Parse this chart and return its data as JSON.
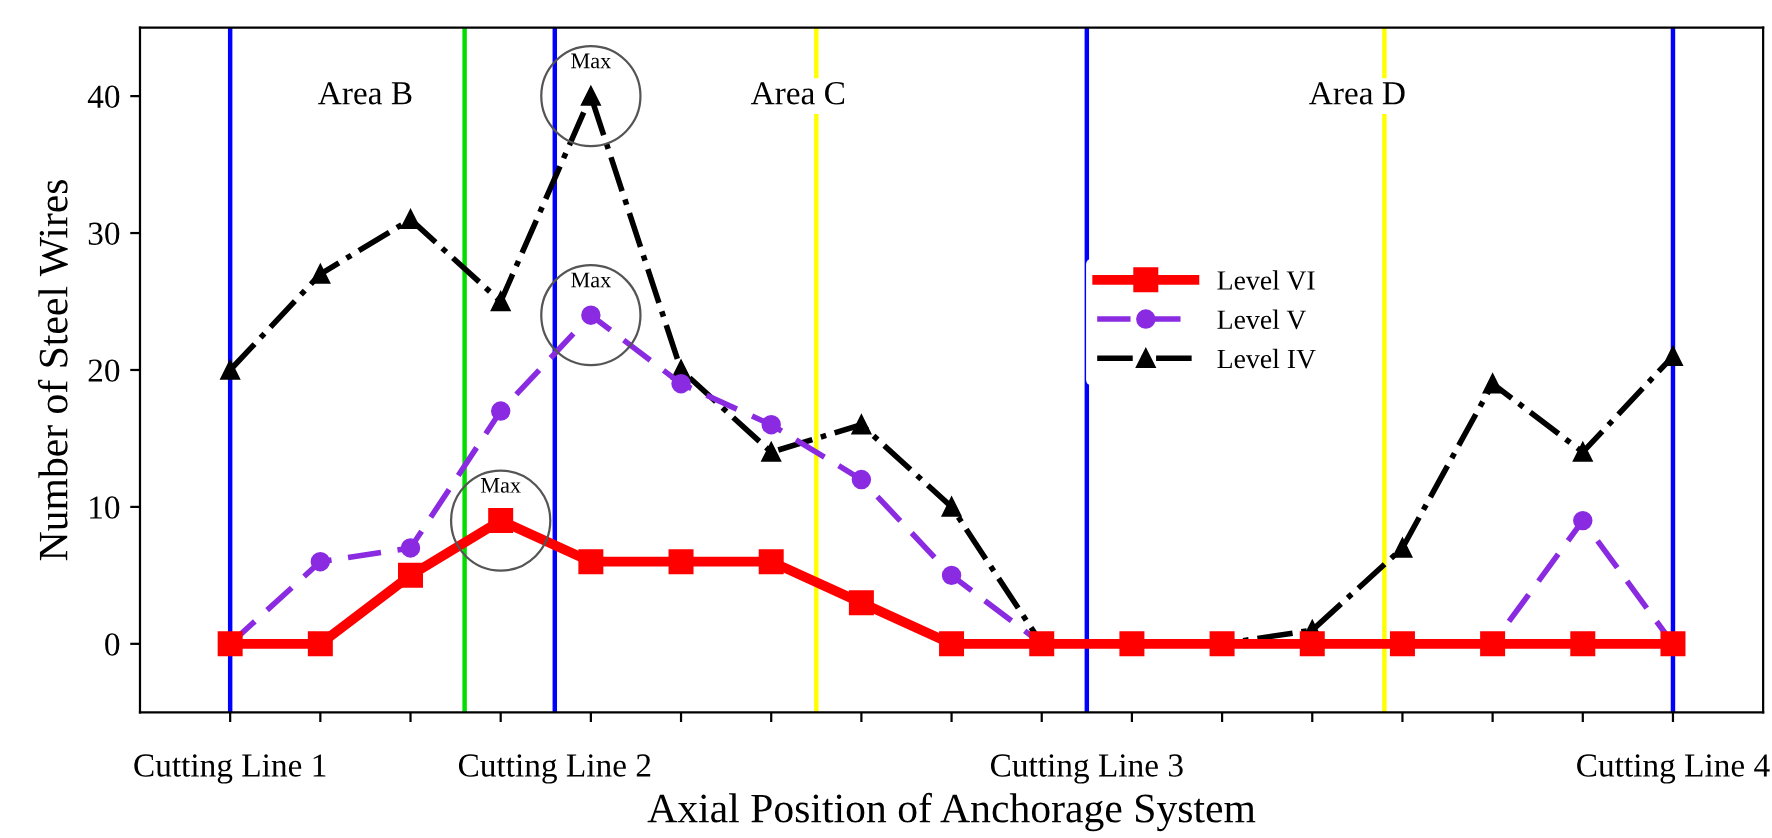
{
  "chart_data": {
    "type": "line",
    "xlabel": "Axial Position of Anchorage System",
    "ylabel": "Number of Steel Wires",
    "categories": [
      null,
      null,
      null,
      null,
      null,
      null,
      null,
      null,
      null,
      null,
      null,
      null,
      null,
      null,
      null,
      null,
      null
    ],
    "series": [
      {
        "name": "Level VI",
        "color": "#ff0000",
        "marker": "square",
        "line_style": "solid",
        "values": [
          0,
          0,
          5,
          9,
          6,
          6,
          6,
          3,
          0,
          0,
          0,
          0,
          0,
          0,
          0,
          0,
          0
        ]
      },
      {
        "name": "Level V",
        "color": "#8a2be2",
        "marker": "circle",
        "line_style": "dashed",
        "values": [
          0,
          6,
          7,
          17,
          24,
          19,
          16,
          12,
          5,
          0,
          0,
          0,
          0,
          0,
          0,
          9,
          0
        ]
      },
      {
        "name": "Level IV",
        "color": "#000000",
        "marker": "triangle",
        "line_style": "dashdot",
        "values": [
          20,
          27,
          31,
          25,
          40,
          20,
          14,
          16,
          10,
          0,
          0,
          0,
          1,
          7,
          19,
          14,
          21
        ]
      }
    ],
    "ylim": [
      -5,
      45
    ],
    "yticks": [
      0,
      10,
      20,
      30,
      40
    ],
    "annotations": [
      "Area B",
      "Area C",
      "Area D",
      "Cutting Line 1",
      "Cutting Line 2",
      "Cutting Line 3",
      "Cutting Line 4",
      {
        "text": "Max",
        "y": 40
      },
      {
        "text": "Max",
        "y": 24
      },
      {
        "text": "Max",
        "y": 9
      }
    ],
    "legend": "right",
    "grid": false
  }
}
